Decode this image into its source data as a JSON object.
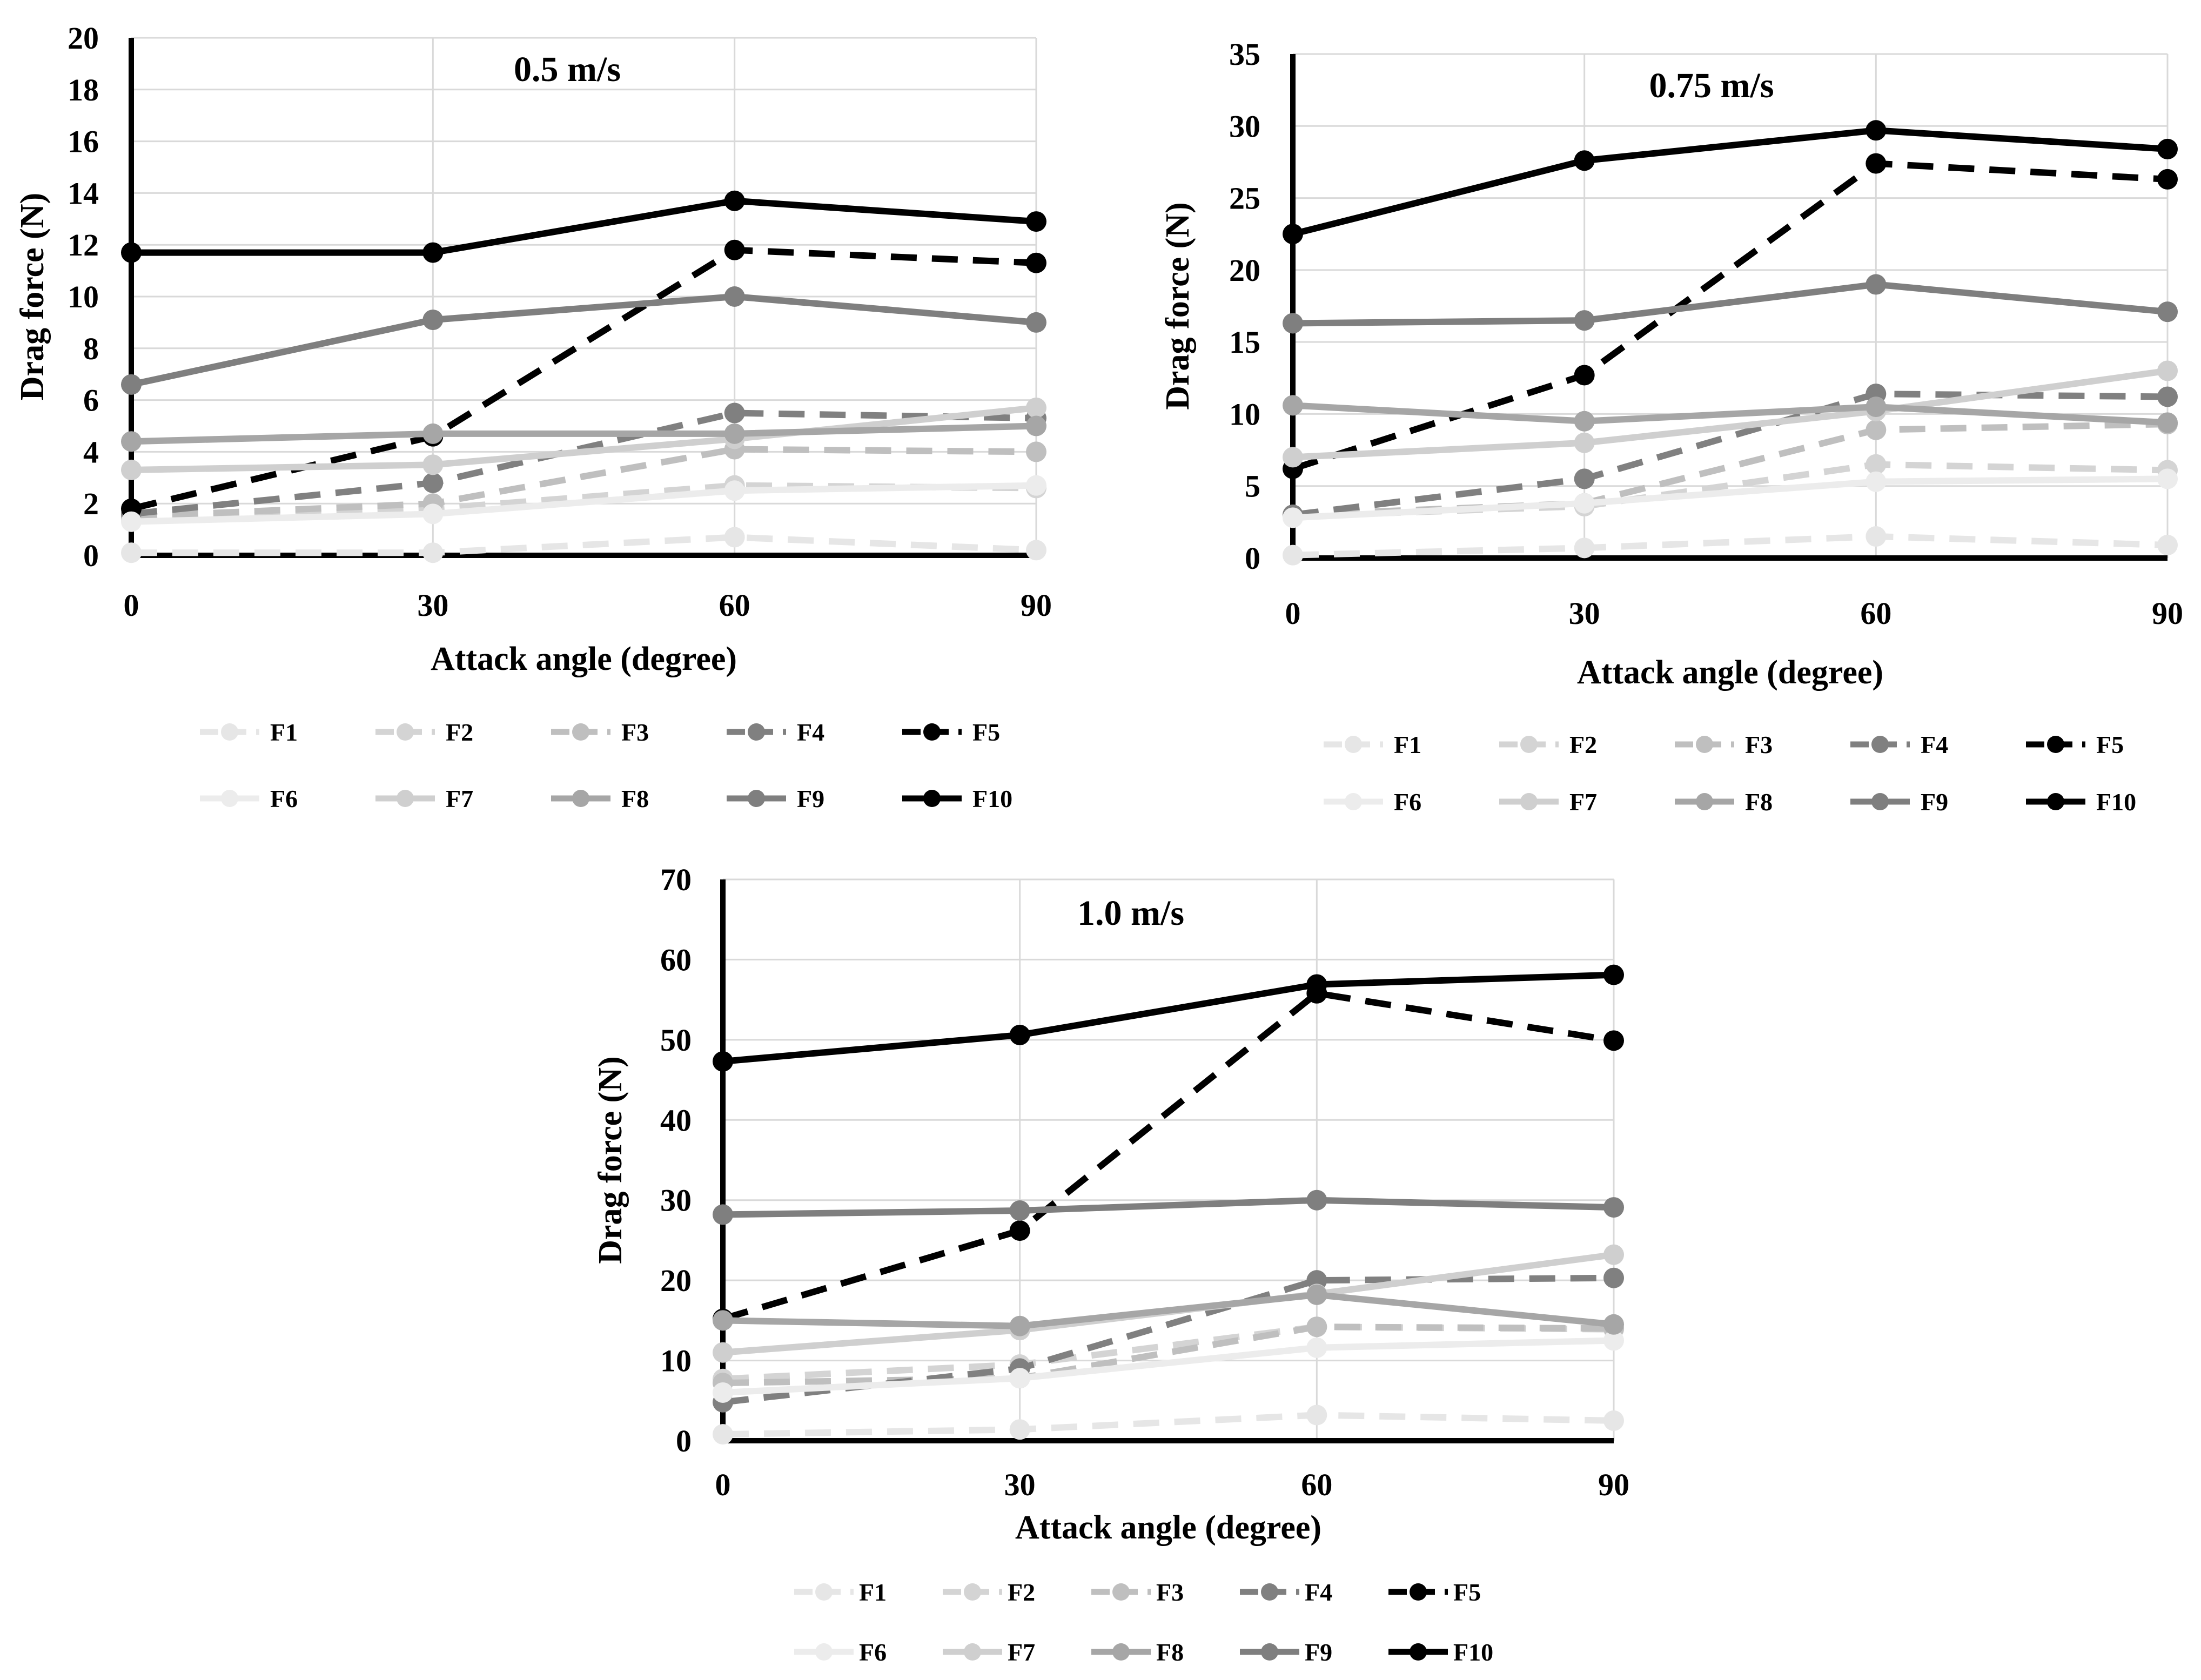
{
  "chart_data": [
    {
      "type": "line",
      "title": "0.5 m/s",
      "xlabel": "Attack angle (degree)",
      "ylabel": "Drag force (N)",
      "categories": [
        0,
        30,
        60,
        90
      ],
      "x_tick_labels": [
        "0",
        "30",
        "60",
        "90"
      ],
      "ylim": [
        0,
        20
      ],
      "y_ticks": [
        0,
        2,
        4,
        6,
        8,
        10,
        12,
        14,
        16,
        18,
        20
      ],
      "y_tick_labels": [
        "0",
        "2",
        "4",
        "6",
        "8",
        "10",
        "12",
        "14",
        "16",
        "18",
        "20"
      ],
      "grid": true,
      "legend_position": "bottom",
      "series": [
        {
          "name": "F1",
          "dashed": true,
          "color": "#e6e6e6",
          "values": [
            0.1,
            0.1,
            0.7,
            0.2
          ]
        },
        {
          "name": "F2",
          "dashed": true,
          "color": "#d4d4d4",
          "values": [
            1.4,
            1.8,
            2.7,
            2.6
          ]
        },
        {
          "name": "F3",
          "dashed": true,
          "color": "#bfbfbf",
          "values": [
            1.5,
            2.0,
            4.1,
            4.0
          ]
        },
        {
          "name": "F4",
          "dashed": true,
          "color": "#808080",
          "values": [
            1.6,
            2.8,
            5.5,
            5.3
          ]
        },
        {
          "name": "F5",
          "dashed": true,
          "color": "#000000",
          "values": [
            1.8,
            4.6,
            11.8,
            11.3
          ]
        },
        {
          "name": "F6",
          "dashed": false,
          "color": "#ececec",
          "values": [
            1.3,
            1.6,
            2.5,
            2.7
          ]
        },
        {
          "name": "F7",
          "dashed": false,
          "color": "#cfcfcf",
          "values": [
            3.3,
            3.5,
            4.5,
            5.7
          ]
        },
        {
          "name": "F8",
          "dashed": false,
          "color": "#a6a6a6",
          "values": [
            4.4,
            4.7,
            4.7,
            5.0
          ]
        },
        {
          "name": "F9",
          "dashed": false,
          "color": "#7f7f7f",
          "values": [
            6.6,
            9.1,
            10.0,
            9.0
          ]
        },
        {
          "name": "F10",
          "dashed": false,
          "color": "#000000",
          "values": [
            11.7,
            11.7,
            13.7,
            12.9
          ]
        }
      ]
    },
    {
      "type": "line",
      "title": "0.75 m/s",
      "xlabel": "Attack angle (degree)",
      "ylabel": "Drag force (N)",
      "categories": [
        0,
        30,
        60,
        90
      ],
      "x_tick_labels": [
        "0",
        "30",
        "60",
        "90"
      ],
      "ylim": [
        0,
        35
      ],
      "y_ticks": [
        0,
        5,
        10,
        15,
        20,
        25,
        30,
        35
      ],
      "y_tick_labels": [
        "0",
        "5",
        "10",
        "15",
        "20",
        "25",
        "30",
        "35"
      ],
      "grid": true,
      "legend_position": "bottom",
      "series": [
        {
          "name": "F1",
          "dashed": true,
          "color": "#e6e6e6",
          "values": [
            0.2,
            0.7,
            1.5,
            0.9
          ]
        },
        {
          "name": "F2",
          "dashed": true,
          "color": "#d4d4d4",
          "values": [
            2.9,
            3.6,
            6.5,
            6.1
          ]
        },
        {
          "name": "F3",
          "dashed": true,
          "color": "#bfbfbf",
          "values": [
            3.0,
            3.8,
            8.9,
            9.3
          ]
        },
        {
          "name": "F4",
          "dashed": true,
          "color": "#808080",
          "values": [
            3.0,
            5.5,
            11.4,
            11.2
          ]
        },
        {
          "name": "F5",
          "dashed": true,
          "color": "#000000",
          "values": [
            6.2,
            12.7,
            27.4,
            26.3
          ]
        },
        {
          "name": "F6",
          "dashed": false,
          "color": "#ececec",
          "values": [
            2.8,
            3.8,
            5.3,
            5.5
          ]
        },
        {
          "name": "F7",
          "dashed": false,
          "color": "#cfcfcf",
          "values": [
            7.0,
            8.0,
            10.2,
            13.0
          ]
        },
        {
          "name": "F8",
          "dashed": false,
          "color": "#a6a6a6",
          "values": [
            10.6,
            9.5,
            10.5,
            9.4
          ]
        },
        {
          "name": "F9",
          "dashed": false,
          "color": "#7f7f7f",
          "values": [
            16.3,
            16.5,
            19.0,
            17.1
          ]
        },
        {
          "name": "F10",
          "dashed": false,
          "color": "#000000",
          "values": [
            22.5,
            27.6,
            29.7,
            28.4
          ]
        }
      ]
    },
    {
      "type": "line",
      "title": "1.0 m/s",
      "xlabel": "Attack angle (degree)",
      "ylabel": "Drag force (N)",
      "categories": [
        0,
        30,
        60,
        90
      ],
      "x_tick_labels": [
        "0",
        "30",
        "60",
        "90"
      ],
      "ylim": [
        0,
        70
      ],
      "y_ticks": [
        0,
        10,
        20,
        30,
        40,
        50,
        60,
        70
      ],
      "y_tick_labels": [
        "0",
        "10",
        "20",
        "30",
        "40",
        "50",
        "60",
        "70"
      ],
      "grid": true,
      "legend_position": "bottom",
      "series": [
        {
          "name": "F1",
          "dashed": true,
          "color": "#e6e6e6",
          "values": [
            0.8,
            1.4,
            3.2,
            2.5
          ]
        },
        {
          "name": "F2",
          "dashed": true,
          "color": "#d4d4d4",
          "values": [
            7.7,
            9.5,
            14.2,
            13.9
          ]
        },
        {
          "name": "F3",
          "dashed": true,
          "color": "#bfbfbf",
          "values": [
            7.2,
            7.8,
            14.2,
            14.0
          ]
        },
        {
          "name": "F4",
          "dashed": true,
          "color": "#808080",
          "values": [
            4.8,
            9.0,
            20.0,
            20.3
          ]
        },
        {
          "name": "F5",
          "dashed": true,
          "color": "#000000",
          "values": [
            15.2,
            26.2,
            55.8,
            49.9
          ]
        },
        {
          "name": "F6",
          "dashed": false,
          "color": "#ececec",
          "values": [
            6.0,
            7.8,
            11.6,
            12.5
          ]
        },
        {
          "name": "F7",
          "dashed": false,
          "color": "#cfcfcf",
          "values": [
            11.0,
            13.8,
            18.3,
            23.2
          ]
        },
        {
          "name": "F8",
          "dashed": false,
          "color": "#a6a6a6",
          "values": [
            15.0,
            14.3,
            18.2,
            14.5
          ]
        },
        {
          "name": "F9",
          "dashed": false,
          "color": "#7f7f7f",
          "values": [
            28.2,
            28.7,
            30.0,
            29.1
          ]
        },
        {
          "name": "F10",
          "dashed": false,
          "color": "#000000",
          "values": [
            47.3,
            50.6,
            56.9,
            58.1
          ]
        }
      ]
    }
  ]
}
